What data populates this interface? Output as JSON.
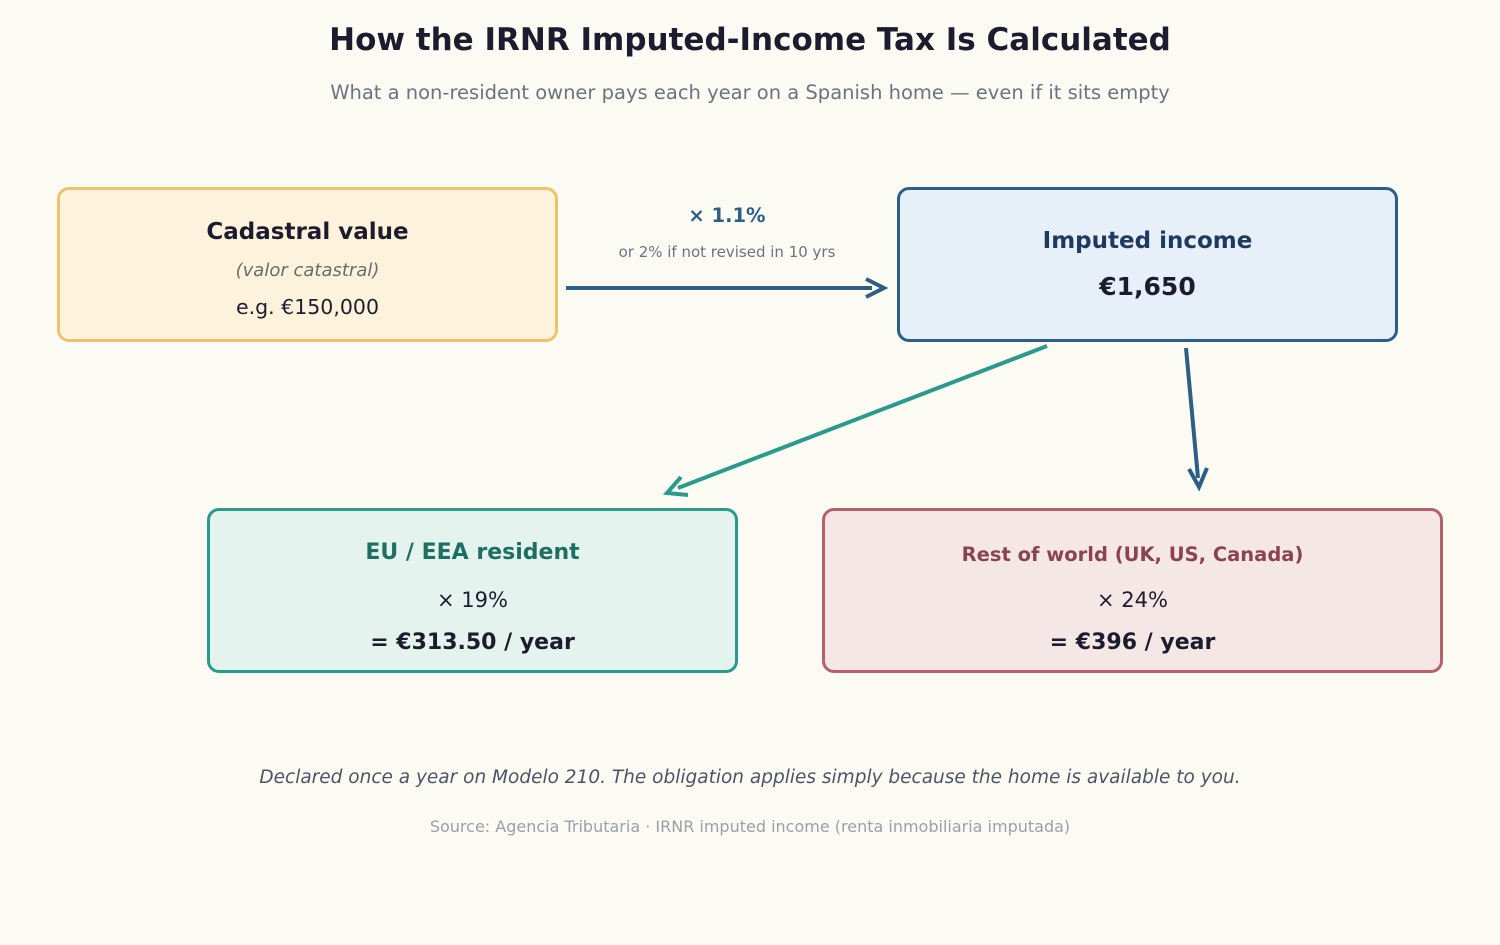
{
  "title": "How the IRNR Imputed-Income Tax Is Calculated",
  "subtitle": "What a non-resident owner pays each year on a Spanish home — even if it sits empty",
  "cadastral": {
    "title": "Cadastral value",
    "subtitle": "(valor catastral)",
    "example": "e.g. €150,000"
  },
  "rate": {
    "label": "× 1.1%",
    "note": "or 2% if not revised in 10 yrs"
  },
  "imputed": {
    "title": "Imputed income",
    "value": "€1,650"
  },
  "eu": {
    "title": "EU / EEA resident",
    "rate": "× 19%",
    "result": "= €313.50 / year"
  },
  "rest": {
    "title": "Rest of world (UK, US, Canada)",
    "rate": "× 24%",
    "result": "= €396 / year"
  },
  "footnote": "Declared once a year on Modelo 210. The obligation applies simply because the home is available to you.",
  "source": "Source: Agencia Tributaria · IRNR imputed income (renta inmobiliaria imputada)",
  "colors": {
    "navy_arrow": "#2d5e84",
    "teal_arrow": "#2a9a8b"
  }
}
